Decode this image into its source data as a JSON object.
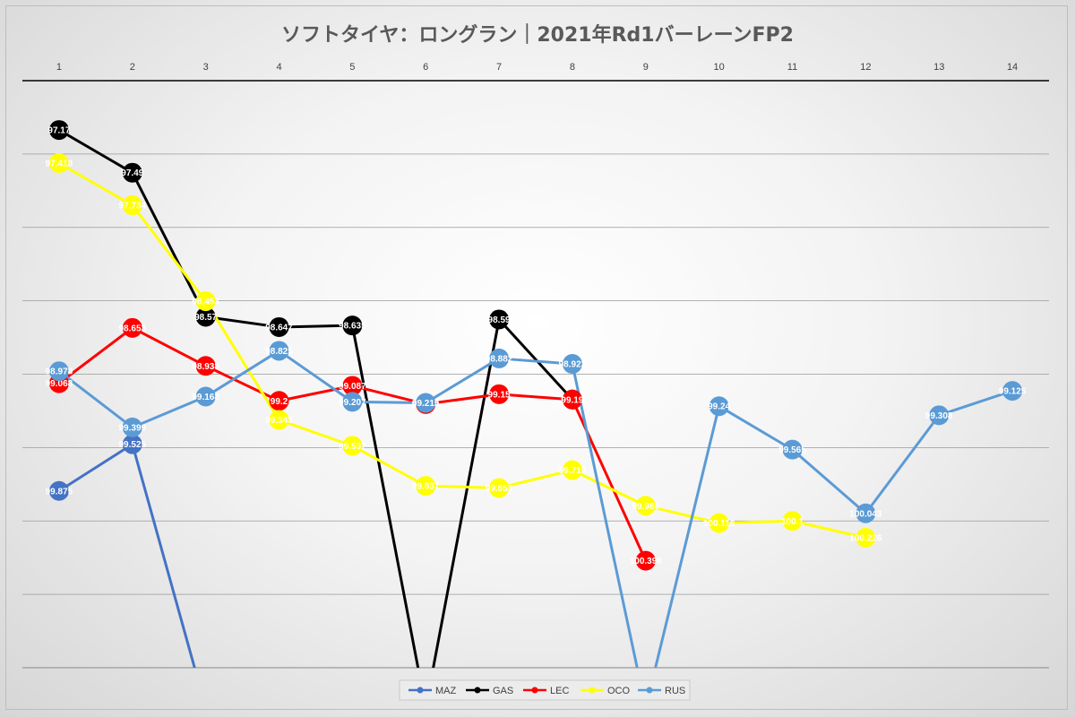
{
  "chart_data": {
    "type": "line",
    "title": "ソフトタイヤ：ロングラン｜2021年Rd1バーレーンFP2",
    "xlabel": "",
    "ylabel": "",
    "x": [
      1,
      2,
      3,
      4,
      5,
      6,
      7,
      8,
      9,
      10,
      11,
      12,
      13,
      14
    ],
    "x_axis_position": "top",
    "y_axis": "reversed",
    "ylim": [
      101.2,
      96.8
    ],
    "grid": true,
    "legend": "bottom",
    "series": [
      {
        "name": "MAZ",
        "color": "#4472c4",
        "values": [
          99.875,
          99.525,
          101.5,
          null,
          null,
          null,
          null,
          null,
          null,
          null,
          null,
          null,
          null,
          null
        ]
      },
      {
        "name": "GAS",
        "color": "#000000",
        "values": [
          97.17,
          97.49,
          98.57,
          98.647,
          98.635,
          101.5,
          98.59,
          99.19,
          null,
          null,
          null,
          null,
          null,
          null
        ]
      },
      {
        "name": "LEC",
        "color": "#ff0000",
        "values": [
          99.068,
          98.653,
          98.938,
          99.2,
          99.087,
          99.224,
          99.15,
          99.19,
          100.398,
          null,
          null,
          null,
          null,
          null
        ]
      },
      {
        "name": "OCO",
        "color": "#ffff00",
        "values": [
          97.418,
          97.734,
          98.453,
          99.343,
          99.537,
          99.837,
          99.853,
          99.719,
          99.986,
          100.116,
          100.1,
          100.226,
          null,
          null
        ]
      },
      {
        "name": "RUS",
        "color": "#5b9bd5",
        "values": [
          98.978,
          99.399,
          99.168,
          98.825,
          99.207,
          99.215,
          98.882,
          98.923,
          101.5,
          99.24,
          99.565,
          100.043,
          99.308,
          99.125
        ]
      }
    ],
    "data_labels": {
      "MAZ": [
        "99.875",
        "99.525",
        "",
        "",
        "",
        "",
        "",
        "",
        "",
        "",
        "",
        "",
        "",
        ""
      ],
      "GAS": [
        "97.17",
        "97.49",
        "98.57",
        "98.647",
        "98.635",
        "",
        "98.59",
        "99.19",
        "",
        "",
        "",
        "",
        "",
        ""
      ],
      "LEC": [
        "99.068",
        "98.653",
        "98.938",
        "99.2",
        "99.087",
        "99.224",
        "99.15",
        "99.19",
        "100.398",
        "",
        "",
        "",
        "",
        ""
      ],
      "OCO": [
        "97.418",
        "97.734",
        "98.453",
        "99.343",
        "99.537",
        "99.837",
        "99.853",
        "99.719",
        "99.986",
        "100.116",
        "100.1",
        "100.226",
        "",
        ""
      ],
      "RUS": [
        "98.978",
        "99.399",
        "99.168",
        "98.825",
        "99.207",
        "99.215",
        "98.882",
        "98.923",
        "",
        "99.24",
        "99.565",
        "100.043",
        "99.308",
        "99.125"
      ]
    }
  }
}
